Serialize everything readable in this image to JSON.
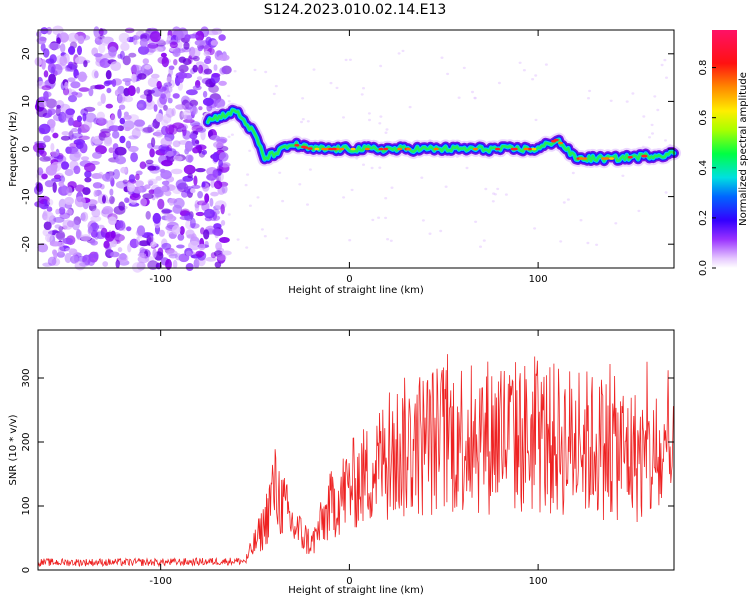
{
  "title": "S124.2023.010.02.14.E13",
  "chart_data": [
    {
      "type": "heatmap",
      "xlabel": "Height of straight line (km)",
      "ylabel": "Frequency (Hz)",
      "xlim": [
        -165,
        172
      ],
      "ylim": [
        -25,
        25
      ],
      "xticks": [
        -100,
        0,
        100
      ],
      "yticks": [
        -20,
        -10,
        0,
        10,
        20
      ],
      "colorbar": {
        "label": "Normalized spectral amplitude",
        "range": [
          0,
          0.95
        ],
        "ticks": [
          "0.0",
          "0.2",
          "0.4",
          "0.6",
          "0.8"
        ]
      },
      "ridge": {
        "description_points_x": [
          -75,
          -60,
          -50,
          -45,
          -30,
          -20,
          0,
          20,
          50,
          80,
          100,
          110,
          120,
          140,
          172
        ],
        "description_points_y": [
          6,
          8,
          3,
          -2,
          1,
          0,
          0,
          0,
          0,
          0,
          0,
          2,
          -2,
          -2,
          -1
        ]
      },
      "noise_region_x": [
        -165,
        -65
      ]
    },
    {
      "type": "line",
      "xlabel": "Height of straight line (km)",
      "ylabel": "SNR (10 * v/v)",
      "xlim": [
        -165,
        172
      ],
      "ylim": [
        0,
        375
      ],
      "xticks": [
        -100,
        0,
        100
      ],
      "yticks": [
        0,
        100,
        200,
        300
      ],
      "color": "#ee2222",
      "envelope": {
        "x": [
          -165,
          -100,
          -55,
          -45,
          -40,
          -30,
          -20,
          -10,
          0,
          10,
          20,
          40,
          60,
          80,
          100,
          120,
          140,
          160,
          172
        ],
        "y": [
          12,
          12,
          14,
          70,
          130,
          70,
          40,
          100,
          130,
          150,
          180,
          200,
          210,
          210,
          205,
          200,
          190,
          170,
          160
        ]
      }
    }
  ]
}
